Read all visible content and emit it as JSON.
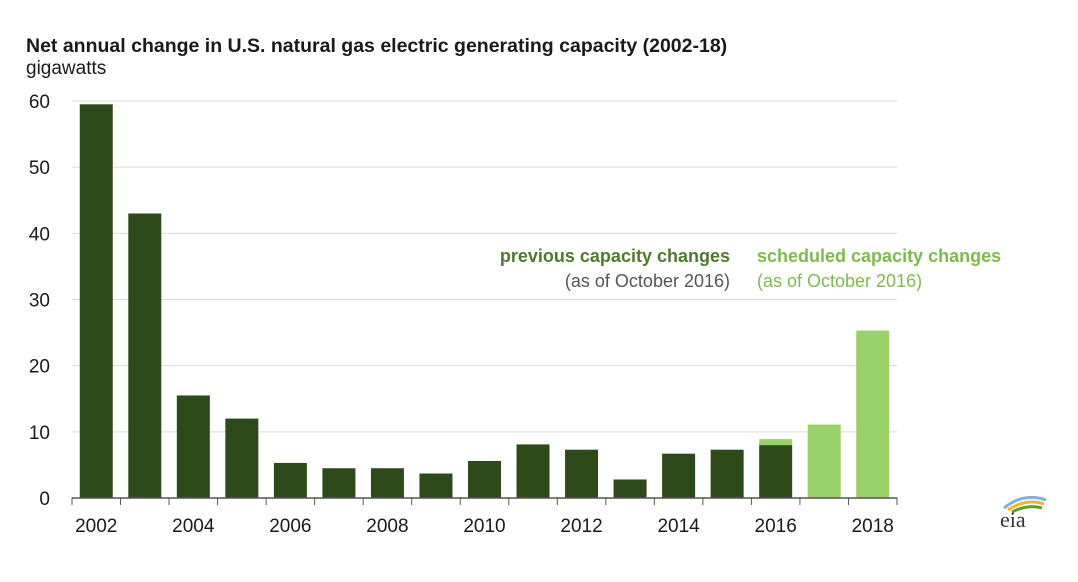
{
  "chart_data": {
    "type": "bar",
    "title": "Net annual change in U.S. natural gas electric generating capacity (2002-18)",
    "ylabel": "gigawatts",
    "xlabel": "",
    "ylim": [
      0,
      60
    ],
    "yticks": [
      "0",
      "10",
      "20",
      "30",
      "40",
      "50",
      "60"
    ],
    "xtick_labels": [
      "2002",
      "2004",
      "2006",
      "2008",
      "2010",
      "2012",
      "2014",
      "2016",
      "2018"
    ],
    "grid": true,
    "categories": [
      "2002",
      "2003",
      "2004",
      "2005",
      "2006",
      "2007",
      "2008",
      "2009",
      "2010",
      "2011",
      "2012",
      "2013",
      "2014",
      "2015",
      "2016",
      "2017",
      "2018"
    ],
    "series": [
      {
        "name": "previous capacity changes",
        "color": "#2d4a1a",
        "values": [
          59.5,
          43.0,
          15.5,
          12.0,
          5.3,
          4.5,
          4.5,
          3.7,
          5.6,
          8.1,
          7.3,
          2.8,
          6.7,
          7.3,
          8.0,
          0,
          0
        ]
      },
      {
        "name": "scheduled capacity changes",
        "color": "#99d16b",
        "values": [
          0,
          0,
          0,
          0,
          0,
          0,
          0,
          0,
          0,
          0,
          0,
          0,
          0,
          0,
          0.9,
          11.1,
          25.3
        ]
      }
    ],
    "annotations": {
      "previous": {
        "label": "previous capacity changes",
        "sub": "(as of October 2016)",
        "color": "#4f7a2e"
      },
      "scheduled": {
        "label": "scheduled capacity changes",
        "sub": "(as of October 2016)",
        "color": "#7dbb4c"
      }
    }
  },
  "logo": {
    "text": "eia"
  }
}
